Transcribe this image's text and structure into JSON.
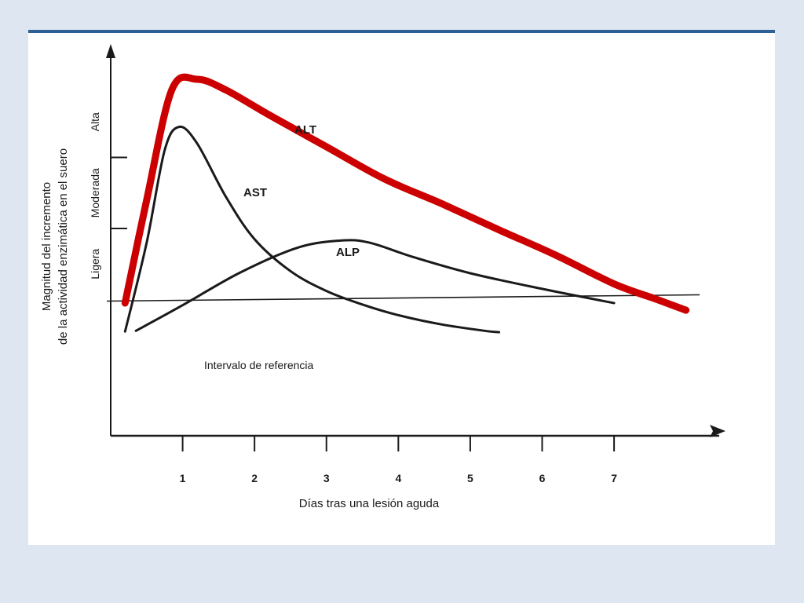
{
  "colors": {
    "background": "#dde6f1",
    "slide": "#ffffff",
    "top_border": "#2e5f95",
    "alt_series": "#cc0000",
    "other_series": "#1a1a1a"
  },
  "chart_data": {
    "type": "line",
    "title": "",
    "xlabel": "Días tras una lesión aguda",
    "ylabel_line1": "Magnitud del incremento",
    "ylabel_line2": "de la actividad enzimática en el suero",
    "x_ticks": [
      "1",
      "2",
      "3",
      "4",
      "5",
      "6",
      "7"
    ],
    "xlim": [
      0,
      8.2
    ],
    "y_bands": [
      "Ligera",
      "Moderada",
      "Alta"
    ],
    "y_band_limits": [
      1.0,
      2.0,
      3.0,
      4.0
    ],
    "ylim": [
      0,
      4.0
    ],
    "reference": {
      "label": "Intervalo de referencia",
      "y": 1.0
    },
    "series": [
      {
        "name": "ALT",
        "color": "#cc0000",
        "emphasis": true,
        "points": [
          [
            0.2,
            0.95
          ],
          [
            0.5,
            2.4
          ],
          [
            0.85,
            3.95
          ],
          [
            1.2,
            4.1
          ],
          [
            1.6,
            3.95
          ],
          [
            2.2,
            3.6
          ],
          [
            3.0,
            3.15
          ],
          [
            3.8,
            2.7
          ],
          [
            4.6,
            2.35
          ],
          [
            5.4,
            1.98
          ],
          [
            6.2,
            1.62
          ],
          [
            7.0,
            1.22
          ],
          [
            7.6,
            1.0
          ],
          [
            8.0,
            0.85
          ]
        ]
      },
      {
        "name": "AST",
        "color": "#1a1a1a",
        "emphasis": false,
        "points": [
          [
            0.2,
            0.55
          ],
          [
            0.5,
            1.8
          ],
          [
            0.75,
            3.1
          ],
          [
            0.95,
            3.43
          ],
          [
            1.2,
            3.2
          ],
          [
            1.6,
            2.45
          ],
          [
            2.0,
            1.85
          ],
          [
            2.5,
            1.4
          ],
          [
            3.0,
            1.12
          ],
          [
            3.5,
            0.93
          ],
          [
            4.0,
            0.78
          ],
          [
            4.6,
            0.65
          ],
          [
            5.2,
            0.56
          ],
          [
            5.4,
            0.54
          ]
        ]
      },
      {
        "name": "ALP",
        "color": "#1a1a1a",
        "emphasis": false,
        "points": [
          [
            0.35,
            0.56
          ],
          [
            1.0,
            0.92
          ],
          [
            1.8,
            1.38
          ],
          [
            2.6,
            1.73
          ],
          [
            3.2,
            1.83
          ],
          [
            3.6,
            1.8
          ],
          [
            4.2,
            1.6
          ],
          [
            5.0,
            1.37
          ],
          [
            6.0,
            1.15
          ],
          [
            7.0,
            0.95
          ]
        ]
      }
    ]
  }
}
